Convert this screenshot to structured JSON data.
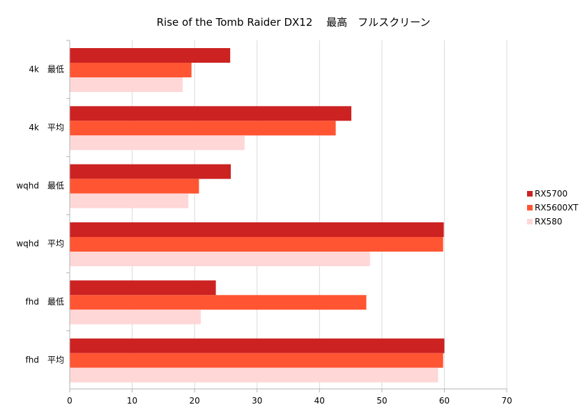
{
  "chart_data": {
    "type": "bar",
    "orientation": "horizontal",
    "title": "Rise of the Tomb Raider DX12　 最高　フルスクリーン",
    "categories": [
      "4k　最低",
      "4k　平均",
      "wqhd　最低",
      "wqhd　平均",
      "fhd　最低",
      "fhd　平均"
    ],
    "series": [
      {
        "name": "RX5700",
        "color": "#cc2222",
        "values": [
          25.7,
          45.1,
          25.8,
          59.9,
          23.4,
          60.0
        ]
      },
      {
        "name": "RX5600XT",
        "color": "#ff5533",
        "values": [
          19.5,
          42.6,
          20.7,
          59.8,
          47.5,
          59.8
        ]
      },
      {
        "name": "RX580",
        "color": "#ffd7d7",
        "values": [
          18.1,
          28.0,
          19.0,
          48.1,
          21.0,
          59.0
        ]
      }
    ],
    "xlim": [
      0,
      70
    ],
    "xticks": [
      "0",
      "10",
      "20",
      "30",
      "40",
      "50",
      "60",
      "70"
    ],
    "grid": true,
    "legend_position": "right"
  }
}
